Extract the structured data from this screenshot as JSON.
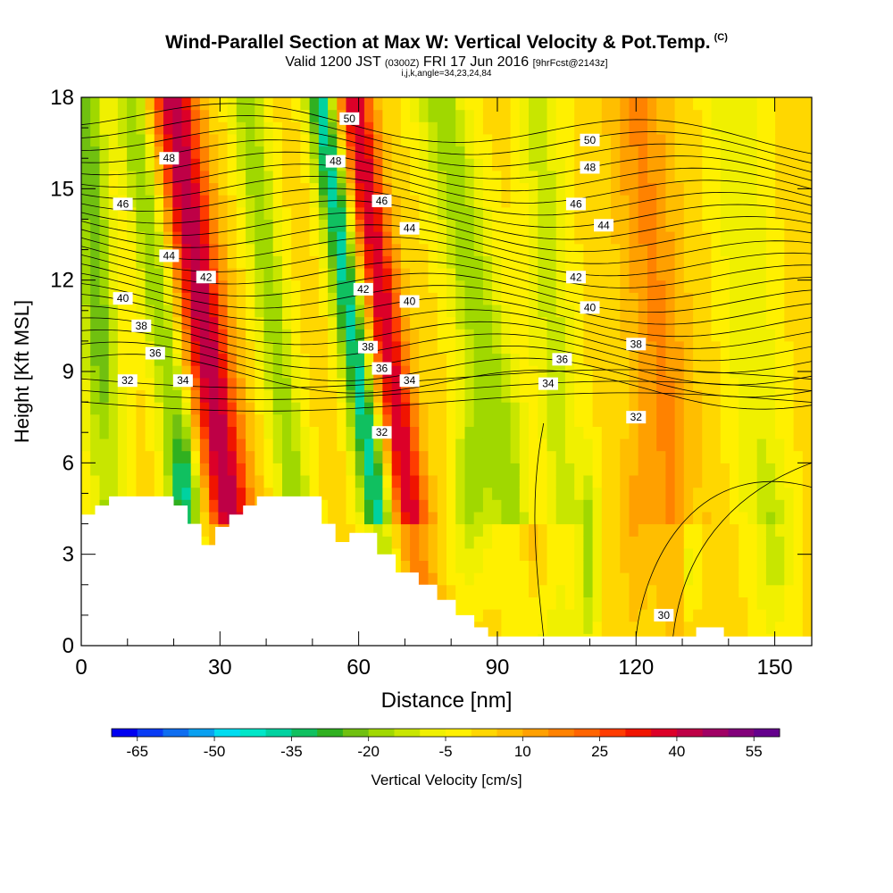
{
  "chart_data": {
    "type": "heatmap",
    "title": "Wind-Parallel Section at Max W: Vertical Velocity & Pot.Temp.",
    "title_mark": "(C)",
    "subtitle_main": "Valid 1200 JST",
    "subtitle_z": "(0300Z)",
    "subtitle_date": "FRI 17 Jun 2016",
    "subtitle_fcst": "[9hrFcst@2143z]",
    "subtitle2": "i,j,k,angle=34,23,24,84",
    "xlabel": "Distance [nm]",
    "ylabel": "Height [Kft MSL]",
    "xlim": [
      0,
      158
    ],
    "ylim": [
      0,
      18
    ],
    "x_ticks": [
      "0",
      "30",
      "60",
      "90",
      "120",
      "150"
    ],
    "y_ticks": [
      "0",
      "3",
      "6",
      "9",
      "12",
      "15",
      "18"
    ],
    "colorbar": {
      "label": "Vertical Velocity [cm/s]",
      "tick_labels": [
        "-65",
        "-50",
        "-35",
        "-20",
        "-5",
        "10",
        "25",
        "40",
        "55"
      ],
      "colors": [
        "#0000f0",
        "#0a3cf5",
        "#0f6ef0",
        "#0aa0f0",
        "#00dcf0",
        "#00e6c8",
        "#00d2a0",
        "#10c060",
        "#30b020",
        "#70c010",
        "#a0d800",
        "#c8e600",
        "#f0f000",
        "#fff000",
        "#ffd700",
        "#ffbe00",
        "#ffa000",
        "#ff8200",
        "#ff6400",
        "#ff3c00",
        "#f01400",
        "#dc0028",
        "#be0046",
        "#a00064",
        "#82007a",
        "#64008c"
      ]
    },
    "theta_contour_labels": [
      {
        "value": "50",
        "x": 58,
        "y": 17.3
      },
      {
        "value": "50",
        "x": 110,
        "y": 16.6
      },
      {
        "value": "48",
        "x": 19,
        "y": 16.0
      },
      {
        "value": "48",
        "x": 55,
        "y": 15.9
      },
      {
        "value": "48",
        "x": 110,
        "y": 15.7
      },
      {
        "value": "46",
        "x": 9,
        "y": 14.5
      },
      {
        "value": "46",
        "x": 65,
        "y": 14.6
      },
      {
        "value": "46",
        "x": 107,
        "y": 14.5
      },
      {
        "value": "44",
        "x": 19,
        "y": 12.8
      },
      {
        "value": "44",
        "x": 71,
        "y": 13.7
      },
      {
        "value": "44",
        "x": 113,
        "y": 13.8
      },
      {
        "value": "42",
        "x": 27,
        "y": 12.1
      },
      {
        "value": "42",
        "x": 61,
        "y": 11.7
      },
      {
        "value": "42",
        "x": 107,
        "y": 12.1
      },
      {
        "value": "40",
        "x": 9,
        "y": 11.4
      },
      {
        "value": "40",
        "x": 71,
        "y": 11.3
      },
      {
        "value": "40",
        "x": 110,
        "y": 11.1
      },
      {
        "value": "38",
        "x": 13,
        "y": 10.5
      },
      {
        "value": "38",
        "x": 62,
        "y": 9.8
      },
      {
        "value": "38",
        "x": 120,
        "y": 9.9
      },
      {
        "value": "36",
        "x": 16,
        "y": 9.6
      },
      {
        "value": "36",
        "x": 65,
        "y": 9.1
      },
      {
        "value": "36",
        "x": 104,
        "y": 9.4
      },
      {
        "value": "34",
        "x": 22,
        "y": 8.7
      },
      {
        "value": "34",
        "x": 71,
        "y": 8.7
      },
      {
        "value": "34",
        "x": 101,
        "y": 8.6
      },
      {
        "value": "32",
        "x": 10,
        "y": 8.7
      },
      {
        "value": "32",
        "x": 65,
        "y": 7.0
      },
      {
        "value": "32",
        "x": 120,
        "y": 7.5
      },
      {
        "value": "30",
        "x": 126,
        "y": 1.0
      }
    ],
    "terrain_height_kft": [
      {
        "x": 0,
        "h": 4.3
      },
      {
        "x": 3,
        "h": 4.6
      },
      {
        "x": 6,
        "h": 4.9
      },
      {
        "x": 20,
        "h": 4.6
      },
      {
        "x": 23,
        "h": 4.0
      },
      {
        "x": 26,
        "h": 3.3
      },
      {
        "x": 29,
        "h": 3.9
      },
      {
        "x": 32,
        "h": 4.3
      },
      {
        "x": 35,
        "h": 4.6
      },
      {
        "x": 38,
        "h": 4.9
      },
      {
        "x": 52,
        "h": 4.0
      },
      {
        "x": 55,
        "h": 3.4
      },
      {
        "x": 58,
        "h": 3.7
      },
      {
        "x": 64,
        "h": 3.0
      },
      {
        "x": 68,
        "h": 2.4
      },
      {
        "x": 73,
        "h": 2.0
      },
      {
        "x": 77,
        "h": 1.5
      },
      {
        "x": 81,
        "h": 1.0
      },
      {
        "x": 85,
        "h": 0.6
      },
      {
        "x": 88,
        "h": 0.3
      },
      {
        "x": 133,
        "h": 0.6
      },
      {
        "x": 139,
        "h": 0.3
      },
      {
        "x": 158,
        "h": 0.3
      }
    ]
  }
}
